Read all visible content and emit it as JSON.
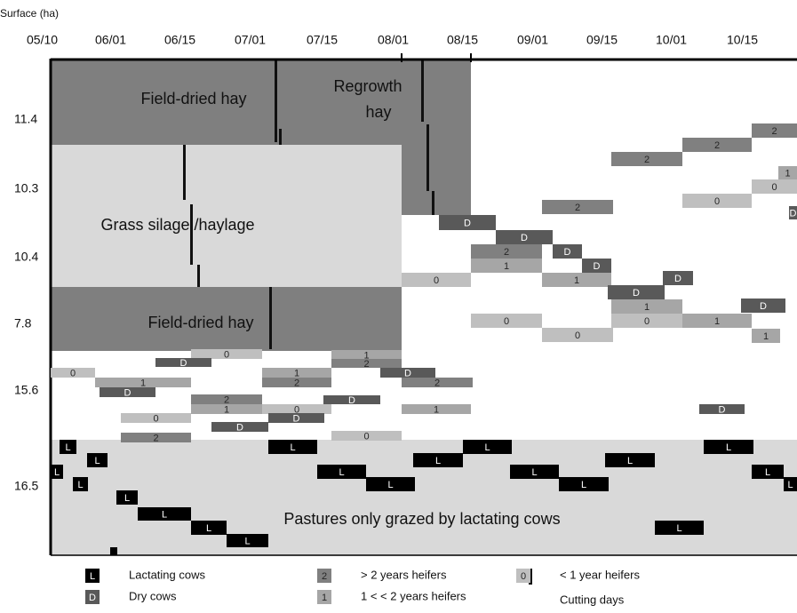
{
  "axis": {
    "y_title": "Surface (ha)",
    "dates": [
      "05/10",
      "06/01",
      "06/15",
      "07/01",
      "07/15",
      "08/01",
      "08/15",
      "09/01",
      "09/15",
      "10/01",
      "10/15"
    ],
    "surfaces": [
      "11.4",
      "10.3",
      "10.4",
      "7.8",
      "15.6",
      "16.5"
    ]
  },
  "regions": {
    "hay_top": "Field-dried hay",
    "regrowth": [
      "Regrowth",
      "hay"
    ],
    "silage": "Grass silage /haylage",
    "hay_low": "Field-dried hay",
    "pasture": "Pastures only grazed by lactating cows"
  },
  "styles": {
    "L": {
      "fill": "#000000",
      "text": "#ffffff"
    },
    "D": {
      "fill": "#595959",
      "text": "#ffffff"
    },
    "2": {
      "fill": "#808080",
      "text": "#262626"
    },
    "1": {
      "fill": "#a6a6a6",
      "text": "#262626"
    },
    "0": {
      "fill": "#bfbfbf",
      "text": "#262626"
    }
  },
  "blocks": [
    "2",
    "2",
    "2",
    "1",
    "0",
    "0",
    "2",
    "D",
    "D",
    "D",
    "2",
    "D",
    "1",
    "D",
    "0",
    "1",
    "D",
    "D",
    "1",
    "D",
    "0",
    "0",
    "1",
    "0",
    "1",
    "0",
    "1",
    "D",
    "2",
    "0",
    "D",
    "1",
    "1",
    "2",
    "2",
    "D",
    "2",
    "D",
    "1",
    "0",
    "1",
    "D",
    "D",
    "0",
    "D",
    "2",
    "0",
    "L",
    "L",
    "L",
    "L",
    "L",
    "L",
    "L",
    "L",
    "L",
    "L",
    "L",
    "L",
    "L",
    "L",
    "L",
    "L",
    "L",
    "L",
    "L",
    "L"
  ],
  "legend": [
    {
      "symbol": "L",
      "text": "Lactating cows"
    },
    {
      "symbol": "2",
      "text": "> 2 years heifers"
    },
    {
      "symbol": "0",
      "text": "< 1 year heifers"
    },
    {
      "symbol": "D",
      "text": "Dry cows"
    },
    {
      "symbol": "1",
      "text": "1 < < 2 years  heifers"
    },
    {
      "text": "Cutting days"
    }
  ]
}
